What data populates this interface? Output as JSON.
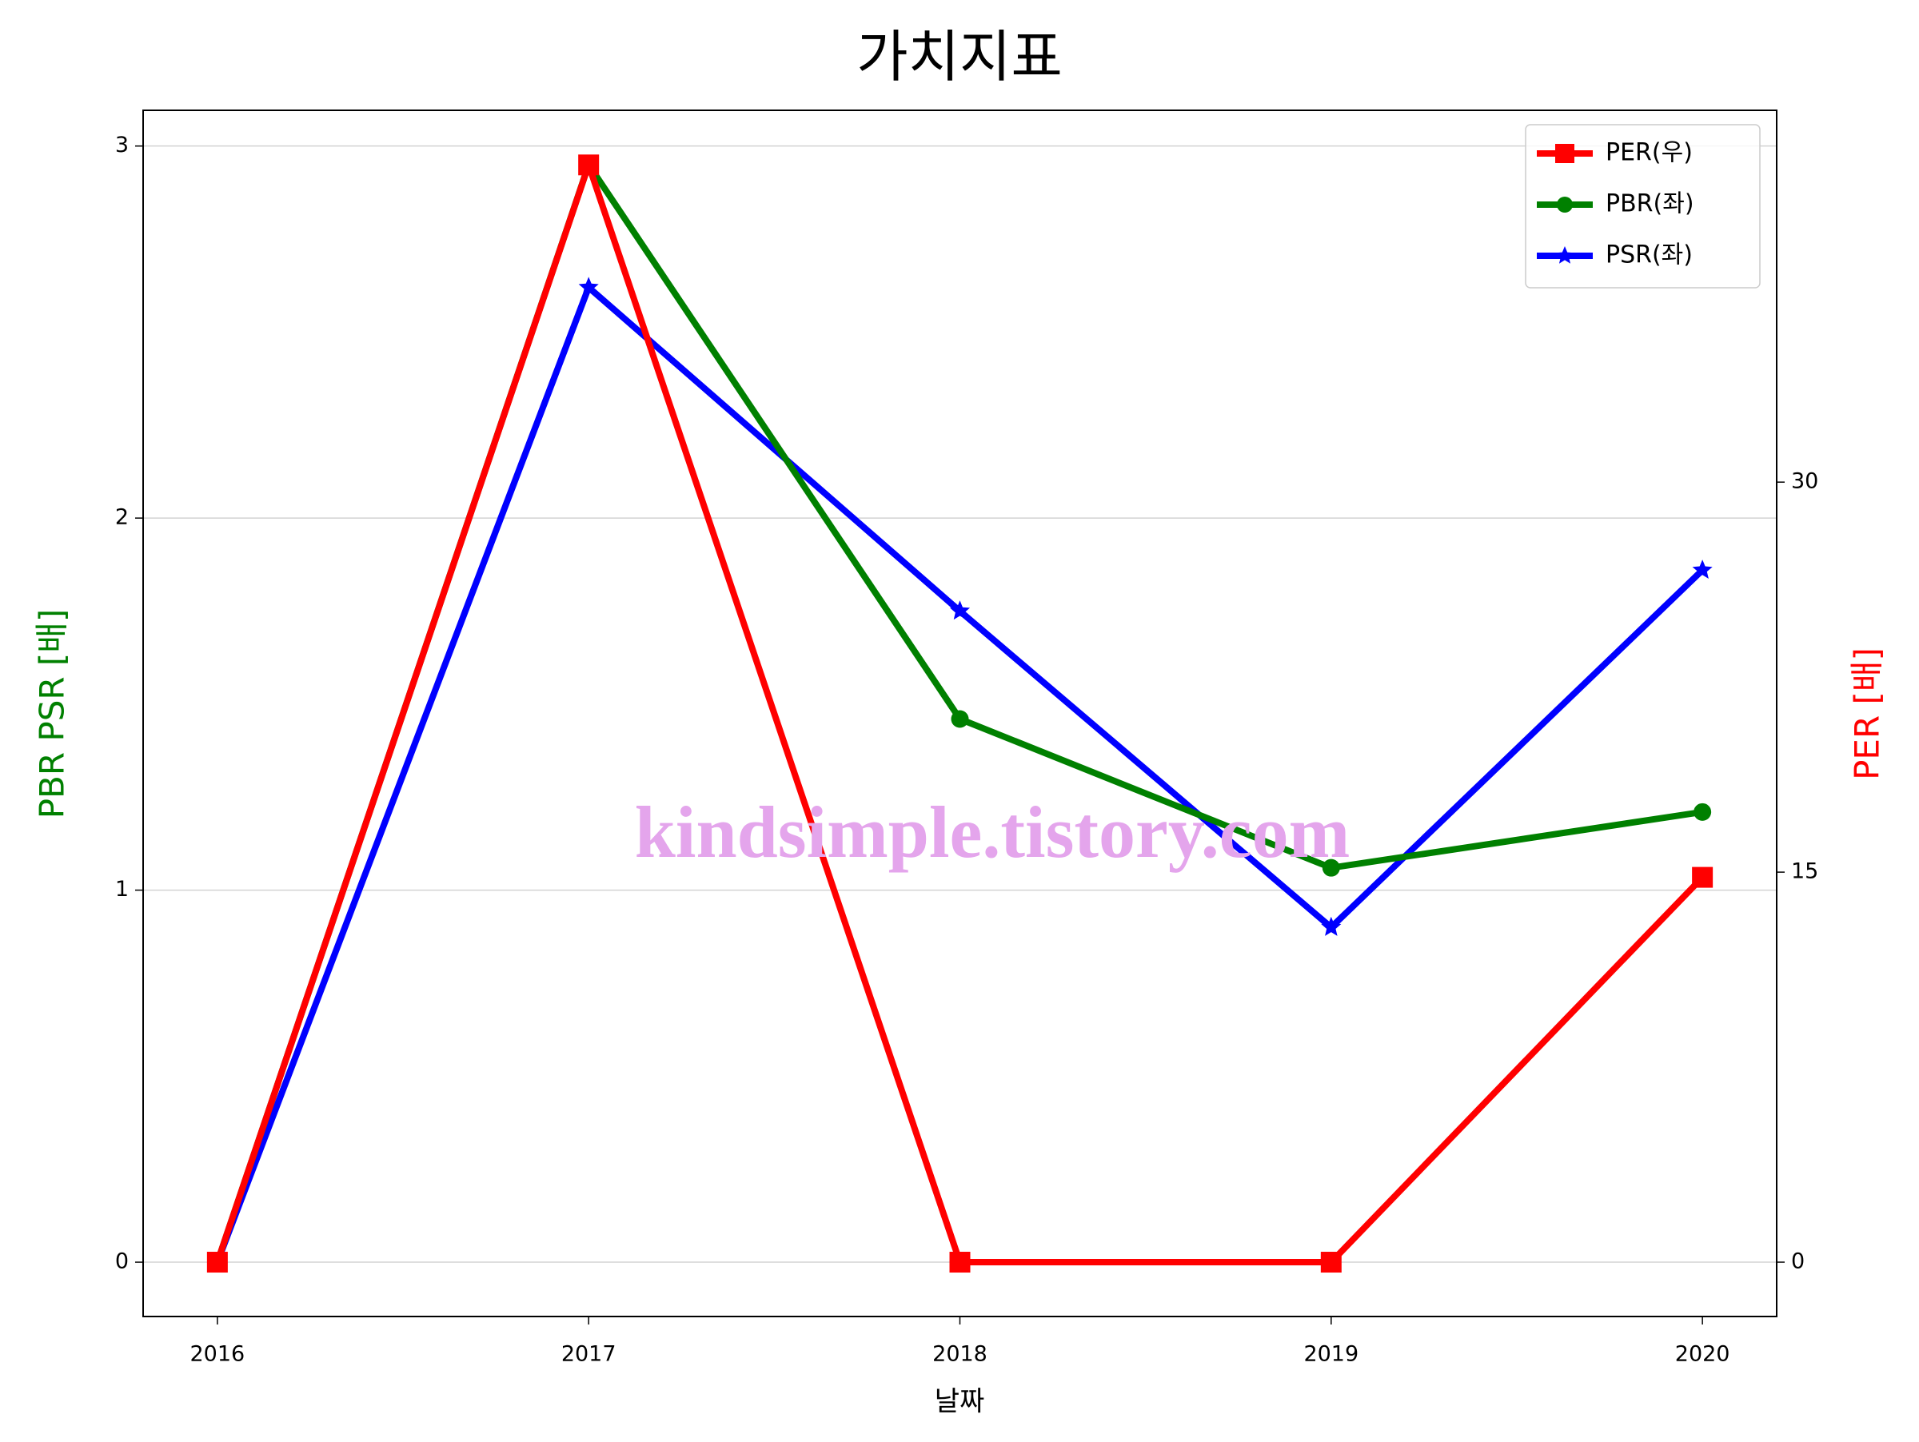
{
  "chart_data": {
    "type": "line",
    "title": "가치지표",
    "x_label": "날짜",
    "y_label": "PBR PSR [배]",
    "y2_label": "PER [배]",
    "watermark": "kindsimple.tistory.com",
    "x": [
      2016,
      2017,
      2018,
      2019,
      2020
    ],
    "xlim": [
      2015.8,
      2020.2
    ],
    "xticks": [
      2016,
      2017,
      2018,
      2019,
      2020
    ],
    "ylim": [
      -0.146,
      3.096
    ],
    "yticks": [
      0,
      1,
      2,
      3
    ],
    "y2lim": [
      -2.09,
      44.3
    ],
    "y2ticks": [
      0,
      15,
      30
    ],
    "grid": true,
    "legend": "upper right",
    "series": [
      {
        "name": "PER(우)",
        "color": "#ff0000",
        "marker": "square",
        "axis": "y2",
        "values": [
          0,
          42.2,
          0,
          0,
          14.8
        ]
      },
      {
        "name": "PBR(좌)",
        "color": "#008000",
        "marker": "circle",
        "values": [
          0,
          2.95,
          1.46,
          1.06,
          1.21
        ]
      },
      {
        "name": "PSR(좌)",
        "color": "#0000ff",
        "marker": "star",
        "values": [
          0,
          2.62,
          1.75,
          0.9,
          1.86
        ]
      }
    ]
  }
}
